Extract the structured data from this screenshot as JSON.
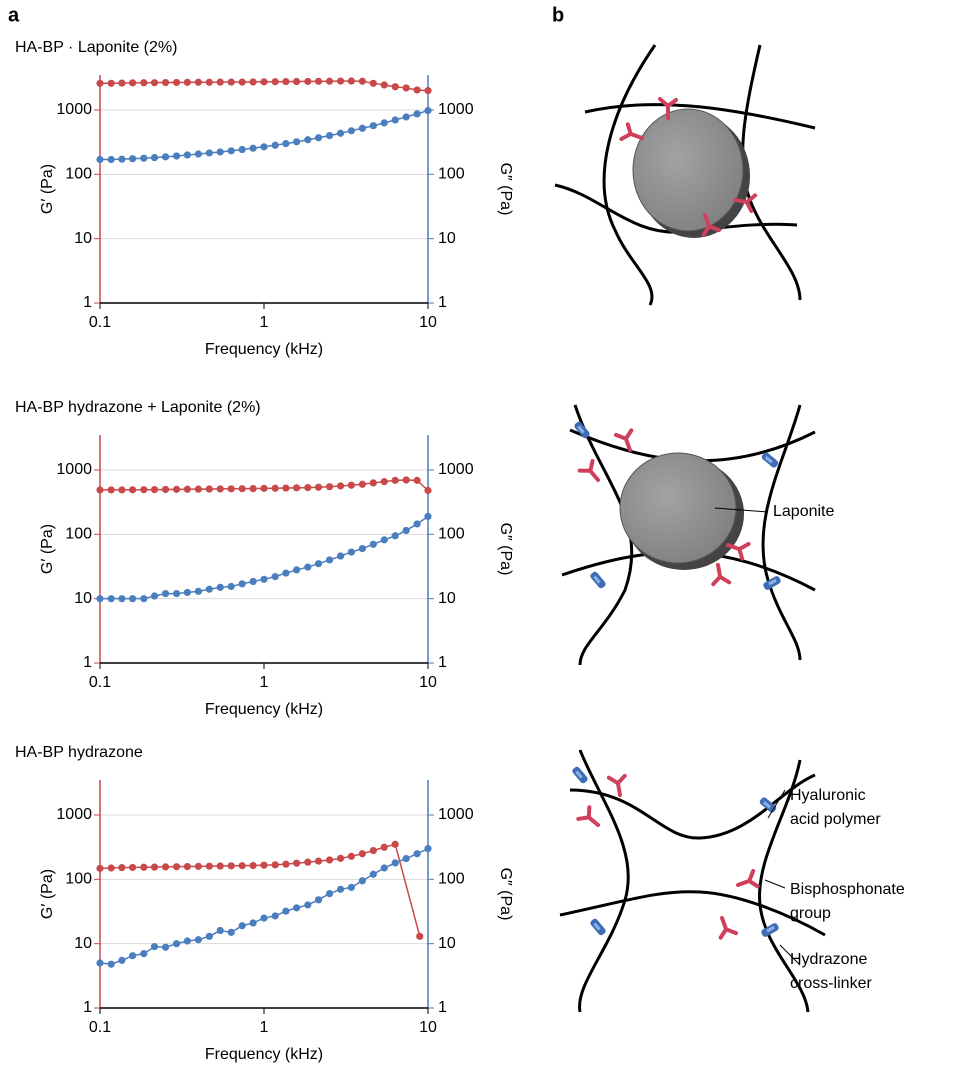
{
  "panels": {
    "a": "a",
    "b": "b"
  },
  "chart_data": [
    {
      "type": "line",
      "title": "HA-BP · Laponite (2%)",
      "xlabel": "Frequency (kHz)",
      "ylabel": "G′ (Pa)",
      "y2label": "G″ (Pa)",
      "xscale": "log",
      "yscale": "log",
      "grid": true,
      "xlim": [
        0.1,
        10
      ],
      "xticks": [
        0.1,
        1,
        10
      ],
      "ylim": [
        1,
        3500
      ],
      "yticks": [
        1,
        10,
        100,
        1000
      ],
      "y2lim": [
        1,
        3500
      ],
      "y2ticks": [
        1,
        10,
        100,
        1000
      ],
      "x": [
        0.1,
        0.117,
        0.136,
        0.158,
        0.185,
        0.215,
        0.251,
        0.293,
        0.341,
        0.398,
        0.464,
        0.541,
        0.631,
        0.736,
        0.858,
        1,
        1.17,
        1.36,
        1.58,
        1.85,
        2.15,
        2.51,
        2.93,
        3.41,
        3.98,
        4.64,
        5.41,
        6.31,
        7.36,
        8.58,
        10
      ],
      "series": [
        {
          "color": "#c9494b",
          "values": [
            2600,
            2600,
            2620,
            2640,
            2650,
            2660,
            2670,
            2680,
            2690,
            2700,
            2700,
            2710,
            2720,
            2720,
            2730,
            2740,
            2750,
            2760,
            2770,
            2780,
            2790,
            2800,
            2810,
            2820,
            2800,
            2600,
            2450,
            2300,
            2200,
            2050,
            2000
          ]
        },
        {
          "color": "#4a7ebf",
          "axis": "y2",
          "values": [
            170,
            170,
            172,
            175,
            178,
            182,
            187,
            193,
            200,
            207,
            215,
            223,
            232,
            243,
            255,
            268,
            283,
            300,
            320,
            345,
            370,
            400,
            435,
            475,
            520,
            570,
            630,
            700,
            780,
            870,
            980
          ]
        }
      ]
    },
    {
      "type": "line",
      "title": "HA-BP hydrazone + Laponite (2%)",
      "xlabel": "Frequency (kHz)",
      "ylabel": "G′ (Pa)",
      "y2label": "G″ (Pa)",
      "xscale": "log",
      "yscale": "log",
      "grid": true,
      "xlim": [
        0.1,
        10
      ],
      "xticks": [
        0.1,
        1,
        10
      ],
      "ylim": [
        1,
        3500
      ],
      "yticks": [
        1,
        10,
        100,
        1000
      ],
      "y2lim": [
        1,
        3500
      ],
      "y2ticks": [
        1,
        10,
        100,
        1000
      ],
      "x": [
        0.1,
        0.117,
        0.136,
        0.158,
        0.185,
        0.215,
        0.251,
        0.293,
        0.341,
        0.398,
        0.464,
        0.541,
        0.631,
        0.736,
        0.858,
        1,
        1.17,
        1.36,
        1.58,
        1.85,
        2.15,
        2.51,
        2.93,
        3.41,
        3.98,
        4.64,
        5.41,
        6.31,
        7.36,
        8.58,
        10
      ],
      "series": [
        {
          "color": "#c9494b",
          "values": [
            490,
            490,
            490,
            492,
            494,
            496,
            498,
            500,
            502,
            504,
            506,
            508,
            510,
            512,
            515,
            518,
            520,
            524,
            528,
            532,
            540,
            550,
            565,
            580,
            600,
            630,
            660,
            690,
            700,
            690,
            480
          ]
        },
        {
          "color": "#4a7ebf",
          "axis": "y2",
          "values": [
            10,
            10,
            10,
            10,
            10,
            11,
            12,
            12,
            12.5,
            13,
            14,
            15,
            15.5,
            17,
            18.5,
            20,
            22,
            25,
            28,
            31,
            35,
            40,
            46,
            53,
            60,
            70,
            82,
            95,
            115,
            145,
            190
          ]
        }
      ]
    },
    {
      "type": "line",
      "title": "HA-BP hydrazone",
      "xlabel": "Frequency (kHz)",
      "ylabel": "G′ (Pa)",
      "y2label": "G″ (Pa)",
      "xscale": "log",
      "yscale": "log",
      "grid": true,
      "xlim": [
        0.1,
        10
      ],
      "xticks": [
        0.1,
        1,
        10
      ],
      "ylim": [
        1,
        3500
      ],
      "yticks": [
        1,
        10,
        100,
        1000
      ],
      "y2lim": [
        1,
        3500
      ],
      "y2ticks": [
        1,
        10,
        100,
        1000
      ],
      "x": [
        0.1,
        0.117,
        0.136,
        0.158,
        0.185,
        0.215,
        0.251,
        0.293,
        0.341,
        0.398,
        0.464,
        0.541,
        0.631,
        0.736,
        0.858,
        1,
        1.17,
        1.36,
        1.58,
        1.85,
        2.15,
        2.51,
        2.93,
        3.41,
        3.98,
        4.64,
        5.41,
        6.31,
        7.36,
        8.58,
        10
      ],
      "series": [
        {
          "color": "#c9494b",
          "x": [
            0.1,
            0.117,
            0.136,
            0.158,
            0.185,
            0.215,
            0.251,
            0.293,
            0.341,
            0.398,
            0.464,
            0.541,
            0.631,
            0.736,
            0.858,
            1,
            1.17,
            1.36,
            1.58,
            1.85,
            2.15,
            2.51,
            2.93,
            3.41,
            3.98,
            4.64,
            5.41,
            6.31,
            8.91
          ],
          "values": [
            148,
            150,
            152,
            153,
            154,
            155,
            156,
            157,
            158,
            159,
            160,
            161,
            162,
            163,
            164,
            166,
            168,
            172,
            178,
            185,
            192,
            200,
            212,
            228,
            250,
            280,
            315,
            350,
            13
          ]
        },
        {
          "color": "#4a7ebf",
          "axis": "y2",
          "values": [
            5,
            4.8,
            5.5,
            6.5,
            7,
            9,
            8.8,
            10,
            11,
            11.5,
            13,
            16,
            15,
            19,
            21,
            25,
            27,
            32,
            36,
            40,
            48,
            60,
            70,
            75,
            95,
            120,
            150,
            180,
            210,
            250,
            300
          ]
        }
      ]
    }
  ],
  "diagram": {
    "laponite": "Laponite",
    "hyaluronic": [
      "Hyaluronic",
      "acid polymer"
    ],
    "bisphosphonate": [
      "Bisphosphonate",
      "group"
    ],
    "hydrazone": [
      "Hydrazone",
      "cross-linker"
    ]
  }
}
